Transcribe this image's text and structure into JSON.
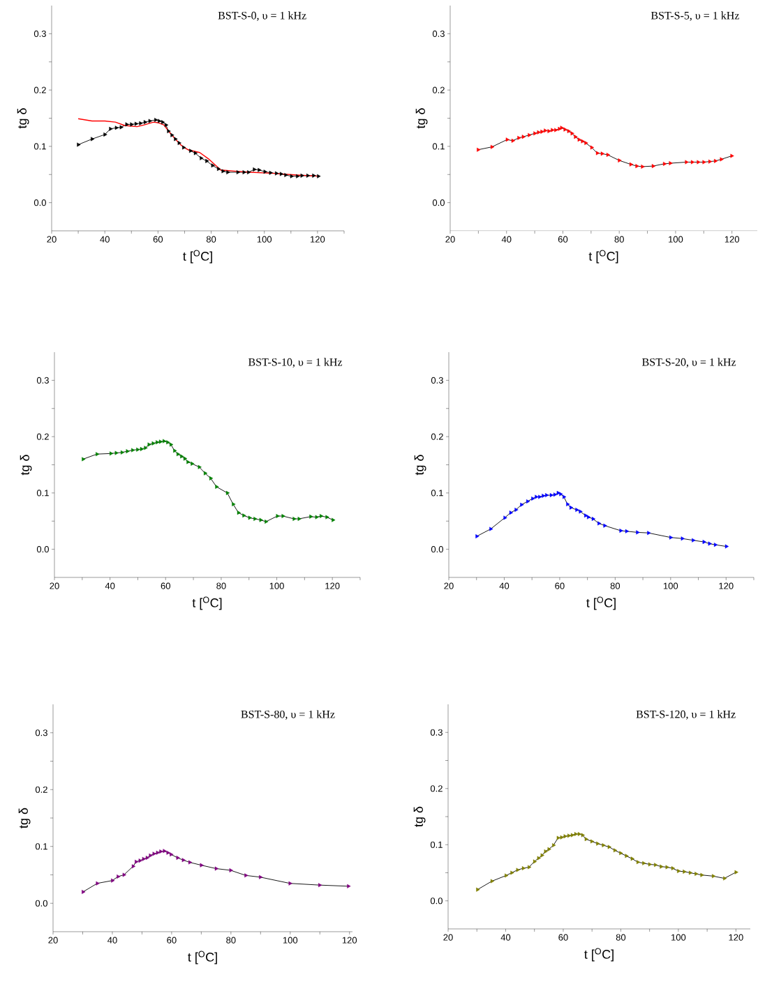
{
  "chart_data": [
    {
      "type": "line",
      "title": "BST-S-0, υ = 1 kHz",
      "xlabel": "t [$^{O}$C]",
      "ylabel": "tg δ",
      "marker": "triangle",
      "xlim": [
        20,
        130
      ],
      "ylim": [
        -0.05,
        0.35
      ],
      "xticks": [
        20,
        {
          "value": 30,
          "label": null
        },
        40,
        {
          "value": 50,
          "label": null
        },
        60,
        {
          "value": 70,
          "label": null
        },
        80,
        {
          "value": 90,
          "label": null
        },
        100,
        {
          "value": 110,
          "label": null
        },
        120,
        {
          "value": 130,
          "label": null
        }
      ],
      "yticks": [
        {
          "value": 0,
          "label": "0.0"
        },
        {
          "value": 0.05,
          "label": null
        },
        0.1,
        {
          "value": 0.15,
          "label": null
        },
        0.2,
        {
          "value": 0.25,
          "label": null
        },
        0.3
      ],
      "series": [
        {
          "color": "#000000",
          "x": [
            30,
            35.2,
            40,
            42.1,
            44.3,
            46.1,
            48.2,
            50,
            51.7,
            53.4,
            55.1,
            56.9,
            59.1,
            60.4,
            61.7,
            63,
            63.9,
            65.2,
            66.5,
            67.9,
            69.6,
            72.2,
            74,
            76.2,
            78.3,
            80.5,
            82.7,
            84.4,
            86.2,
            90,
            92.3,
            94,
            96.2,
            98,
            100.2,
            102.3,
            104.5,
            106.3,
            108,
            110.2,
            112.4,
            114.1,
            116.3,
            118.5,
            120.3
          ],
          "values": [
            0.103,
            0.113,
            0.121,
            0.131,
            0.133,
            0.134,
            0.139,
            0.139,
            0.14,
            0.141,
            0.143,
            0.145,
            0.147,
            0.145,
            0.143,
            0.138,
            0.127,
            0.12,
            0.113,
            0.106,
            0.098,
            0.092,
            0.088,
            0.079,
            0.074,
            0.066,
            0.06,
            0.056,
            0.054,
            0.054,
            0.054,
            0.054,
            0.059,
            0.058,
            0.055,
            0.053,
            0.052,
            0.051,
            0.049,
            0.047,
            0.047,
            0.048,
            0.048,
            0.048,
            0.047
          ]
        },
        {
          "color": "#ff0000",
          "marker": "none",
          "x": [
            30,
            35.2,
            40,
            44,
            47.5,
            52.1,
            54.8,
            58.3,
            60,
            62.2,
            64,
            66.5,
            68.7,
            71.3,
            75.7,
            79.2,
            83.6,
            88.8,
            94.9,
            103.7,
            112.4,
            120.3
          ],
          "values": [
            0.149,
            0.145,
            0.145,
            0.143,
            0.137,
            0.135,
            0.138,
            0.143,
            0.142,
            0.138,
            0.127,
            0.113,
            0.102,
            0.094,
            0.089,
            0.077,
            0.058,
            0.056,
            0.054,
            0.052,
            0.049,
            0.047
          ]
        }
      ]
    },
    {
      "type": "line",
      "title": "BST-S-5, υ = 1 kHz",
      "xlabel": "t [$^{O}$C]",
      "ylabel": "tg δ",
      "marker": "triangle",
      "xlim": [
        20,
        129
      ],
      "ylim": [
        -0.05,
        0.35
      ],
      "xticks": [
        20,
        {
          "value": 30,
          "label": null
        },
        40,
        {
          "value": 50,
          "label": null
        },
        60,
        {
          "value": 70,
          "label": null
        },
        80,
        {
          "value": 90,
          "label": null
        },
        100,
        {
          "value": 110,
          "label": null
        },
        120
      ],
      "yticks": [
        {
          "value": 0,
          "label": "0.0"
        },
        {
          "value": 0.05,
          "label": null
        },
        0.1,
        {
          "value": 0.15,
          "label": null
        },
        0.2,
        {
          "value": 0.25,
          "label": null
        },
        0.3
      ],
      "series": [
        {
          "color": "#ff0000",
          "x": [
            29.9,
            34.8,
            40.2,
            42.2,
            44.3,
            45.9,
            48,
            50,
            51.3,
            52.5,
            53.7,
            55,
            56.2,
            57.4,
            58.7,
            59.5,
            60.7,
            62,
            63.2,
            64.4,
            65.7,
            66.9,
            68.1,
            70.2,
            72.2,
            73.9,
            75.9,
            80,
            84.1,
            86.2,
            88.2,
            92,
            96,
            98.1,
            103.8,
            105.9,
            108,
            110,
            112.1,
            114.1,
            116.2,
            119.9
          ],
          "values": [
            0.094,
            0.099,
            0.112,
            0.11,
            0.115,
            0.117,
            0.12,
            0.123,
            0.125,
            0.126,
            0.128,
            0.127,
            0.129,
            0.129,
            0.131,
            0.133,
            0.13,
            0.127,
            0.123,
            0.117,
            0.112,
            0.109,
            0.106,
            0.098,
            0.088,
            0.087,
            0.085,
            0.075,
            0.068,
            0.065,
            0.064,
            0.065,
            0.069,
            0.07,
            0.072,
            0.072,
            0.072,
            0.072,
            0.073,
            0.074,
            0.077,
            0.083
          ]
        }
      ]
    },
    {
      "type": "line",
      "title": "BST-S-10, υ = 1 kHz",
      "xlabel": "t [$^{O}$C]",
      "ylabel": "tg δ",
      "marker": "triangle",
      "xlim": [
        20,
        130
      ],
      "ylim": [
        -0.05,
        0.35
      ],
      "xticks": [
        20,
        {
          "value": 30,
          "label": null
        },
        40,
        {
          "value": 50,
          "label": null
        },
        60,
        {
          "value": 70,
          "label": null
        },
        80,
        {
          "value": 90,
          "label": null
        },
        100,
        {
          "value": 110,
          "label": null
        },
        120,
        {
          "value": 130,
          "label": null
        }
      ],
      "yticks": [
        {
          "value": 0,
          "label": "0.0"
        },
        {
          "value": 0.05,
          "label": null
        },
        0.1,
        {
          "value": 0.15,
          "label": null
        },
        0.2,
        {
          "value": 0.25,
          "label": null
        },
        0.3
      ],
      "series": [
        {
          "color": "#008000",
          "x": [
            30.3,
            35.3,
            40.3,
            42.2,
            44.3,
            46.2,
            48.1,
            49.9,
            51.3,
            52.7,
            54,
            55.5,
            56.9,
            58.1,
            59.4,
            60.7,
            61.9,
            63.2,
            64.4,
            65.7,
            66.9,
            68,
            69.5,
            72.1,
            74.2,
            76.2,
            78.3,
            82.2,
            84.3,
            86.2,
            88.1,
            90.2,
            92.1,
            94.2,
            96.1,
            100.2,
            102.2,
            106.2,
            108,
            112.2,
            114.3,
            115.9,
            118,
            120.2
          ],
          "values": [
            0.16,
            0.169,
            0.17,
            0.171,
            0.172,
            0.174,
            0.176,
            0.177,
            0.178,
            0.18,
            0.186,
            0.188,
            0.19,
            0.191,
            0.192,
            0.19,
            0.186,
            0.175,
            0.169,
            0.165,
            0.161,
            0.155,
            0.152,
            0.146,
            0.135,
            0.126,
            0.111,
            0.1,
            0.08,
            0.065,
            0.06,
            0.056,
            0.054,
            0.052,
            0.049,
            0.059,
            0.059,
            0.054,
            0.054,
            0.058,
            0.057,
            0.059,
            0.057,
            0.052
          ]
        }
      ]
    },
    {
      "type": "line",
      "title": "BST-S-20, υ = 1 kHz",
      "xlabel": "t [$^{O}$C]",
      "ylabel": "tg δ",
      "marker": "triangle",
      "xlim": [
        20,
        130
      ],
      "ylim": [
        -0.05,
        0.35
      ],
      "xticks": [
        20,
        {
          "value": 30,
          "label": null
        },
        40,
        {
          "value": 50,
          "label": null
        },
        60,
        {
          "value": 70,
          "label": null
        },
        80,
        {
          "value": 90,
          "label": null
        },
        100,
        {
          "value": 110,
          "label": null
        },
        120,
        {
          "value": 130,
          "label": null
        }
      ],
      "yticks": [
        {
          "value": 0,
          "label": "0.0"
        },
        {
          "value": 0.05,
          "label": null
        },
        0.1,
        {
          "value": 0.15,
          "label": null
        },
        0.2,
        {
          "value": 0.25,
          "label": null
        },
        0.3
      ],
      "series": [
        {
          "color": "#0000ff",
          "x": [
            30.1,
            35.1,
            40.2,
            42.3,
            44.2,
            46.2,
            48.4,
            50.2,
            51.5,
            52.7,
            54,
            55.2,
            56.9,
            58.2,
            59.4,
            60.3,
            61.5,
            62.8,
            64,
            66.1,
            67.4,
            69.3,
            70.3,
            72,
            74.1,
            76.2,
            82,
            84.1,
            88,
            92,
            100,
            104.2,
            108.1,
            112,
            114,
            116.1,
            120.1
          ],
          "values": [
            0.023,
            0.036,
            0.056,
            0.065,
            0.07,
            0.079,
            0.085,
            0.09,
            0.093,
            0.093,
            0.095,
            0.096,
            0.096,
            0.097,
            0.1,
            0.098,
            0.093,
            0.08,
            0.074,
            0.07,
            0.067,
            0.06,
            0.057,
            0.054,
            0.046,
            0.042,
            0.033,
            0.032,
            0.03,
            0.029,
            0.021,
            0.019,
            0.016,
            0.013,
            0.01,
            0.008,
            0.005
          ]
        }
      ]
    },
    {
      "type": "line",
      "title": "BST-S-80, υ = 1 kHz",
      "xlabel": "t [$^{O}$C]",
      "ylabel": "tg δ",
      "marker": "triangle",
      "xlim": [
        20,
        121
      ],
      "ylim": [
        -0.05,
        0.35
      ],
      "xticks": [
        20,
        {
          "value": 30,
          "label": null
        },
        40,
        {
          "value": 50,
          "label": null
        },
        60,
        {
          "value": 70,
          "label": null
        },
        80,
        {
          "value": 90,
          "label": null
        },
        100,
        {
          "value": 110,
          "label": null
        },
        120
      ],
      "yticks": [
        {
          "value": 0,
          "label": "0.0"
        },
        {
          "value": 0.05,
          "label": null
        },
        0.1,
        {
          "value": 0.15,
          "label": null
        },
        0.2,
        {
          "value": 0.25,
          "label": null
        },
        0.3
      ],
      "series": [
        {
          "color": "#800080",
          "x": [
            30.1,
            34.9,
            40,
            41.9,
            43.9,
            47,
            48,
            49.3,
            50.5,
            51.7,
            52.8,
            54,
            55.2,
            56.3,
            57.5,
            58.7,
            59.8,
            62,
            63.9,
            66.1,
            70,
            75,
            79.9,
            85,
            89.9,
            99.9,
            109.9,
            119.6
          ],
          "values": [
            0.02,
            0.035,
            0.04,
            0.047,
            0.05,
            0.065,
            0.073,
            0.075,
            0.078,
            0.08,
            0.084,
            0.087,
            0.089,
            0.091,
            0.092,
            0.089,
            0.086,
            0.08,
            0.076,
            0.072,
            0.067,
            0.061,
            0.058,
            0.049,
            0.046,
            0.035,
            0.032,
            0.03
          ]
        }
      ]
    },
    {
      "type": "line",
      "title": "BST-S-120, υ = 1 kHz",
      "xlabel": "t [$^{O}$C]",
      "ylabel": "tg δ",
      "marker": "triangle",
      "xlim": [
        20,
        125
      ],
      "ylim": [
        -0.05,
        0.35
      ],
      "xticks": [
        20,
        {
          "value": 30,
          "label": null
        },
        40,
        {
          "value": 50,
          "label": null
        },
        60,
        {
          "value": 70,
          "label": null
        },
        80,
        {
          "value": 90,
          "label": null
        },
        100,
        {
          "value": 110,
          "label": null
        },
        120
      ],
      "yticks": [
        {
          "value": 0,
          "label": "0.0"
        },
        {
          "value": 0.05,
          "label": null
        },
        0.1,
        {
          "value": 0.15,
          "label": null
        },
        0.2,
        {
          "value": 0.25,
          "label": null
        },
        0.3
      ],
      "series": [
        {
          "color": "#808000",
          "x": [
            30.2,
            35.2,
            40.1,
            42.1,
            44.1,
            46.1,
            48.1,
            50,
            51.4,
            52.6,
            53.8,
            55,
            56.6,
            58.2,
            59.4,
            60.6,
            61.9,
            63.1,
            64.3,
            65.5,
            66.7,
            67.9,
            69.9,
            71.9,
            73.9,
            75.9,
            77.9,
            79.9,
            81.9,
            83.9,
            85.9,
            87.9,
            90,
            92,
            94,
            96,
            98,
            100,
            102,
            104.1,
            106.1,
            108.1,
            112.1,
            116,
            120
          ],
          "values": [
            0.02,
            0.035,
            0.045,
            0.05,
            0.055,
            0.058,
            0.06,
            0.07,
            0.076,
            0.081,
            0.088,
            0.092,
            0.099,
            0.112,
            0.113,
            0.115,
            0.116,
            0.117,
            0.119,
            0.119,
            0.117,
            0.11,
            0.106,
            0.102,
            0.099,
            0.096,
            0.09,
            0.085,
            0.08,
            0.075,
            0.069,
            0.067,
            0.065,
            0.064,
            0.061,
            0.06,
            0.058,
            0.053,
            0.052,
            0.05,
            0.048,
            0.046,
            0.044,
            0.04,
            0.051
          ]
        }
      ]
    }
  ]
}
